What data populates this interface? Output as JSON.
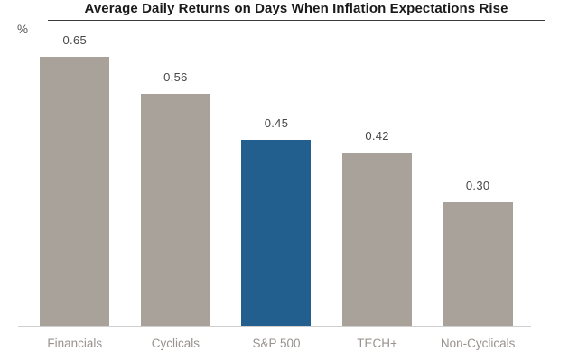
{
  "chart": {
    "title": "Average Daily Returns on Days When Inflation Expectations Rise",
    "unit_label": "%"
  },
  "chart_data": {
    "type": "bar",
    "title": "Average Daily Returns on Days When Inflation Expectations Rise",
    "xlabel": "",
    "ylabel": "%",
    "categories": [
      "Financials",
      "Cyclicals",
      "S&P 500",
      "TECH+",
      "Non-Cyclicals"
    ],
    "values": [
      0.65,
      0.56,
      0.45,
      0.42,
      0.3
    ],
    "value_labels": [
      "0.65",
      "0.56",
      "0.45",
      "0.42",
      "0.30"
    ],
    "highlight_index": 2,
    "highlight_color": "#235f8e",
    "default_color": "#a9a29b",
    "value_label_color": "#474747",
    "category_label_color": "#98938e",
    "axis_line_color": "#cfcfcf",
    "ylim": [
      0,
      0.72
    ],
    "grid": false,
    "legend": null
  }
}
